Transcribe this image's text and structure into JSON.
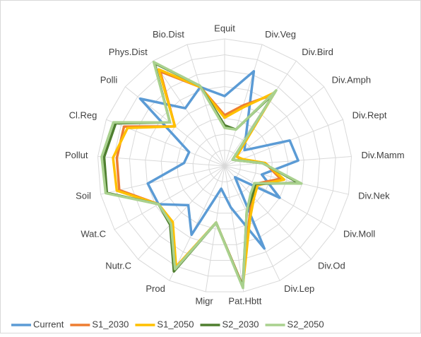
{
  "chart_data": {
    "type": "radar",
    "categories": [
      "Equit",
      "Div.Veg",
      "Div.Bird",
      "Div.Amph",
      "Div.Rept",
      "Div.Mamm",
      "Div.Nek",
      "Div.Moll",
      "Div.Od",
      "Div.Lep",
      "Pat.Hbtt",
      "Migr",
      "Prod",
      "Nutr.C",
      "Wat.C",
      "Soil",
      "Pollut",
      "Cl.Reg",
      "Polli",
      "Phys.Dist",
      "Bio.Dist"
    ],
    "series": [
      {
        "name": "Current",
        "color": "#5b9bd5",
        "values": [
          0.55,
          0.78,
          0.3,
          0.2,
          0.55,
          0.58,
          0.3,
          0.5,
          0.12,
          0.72,
          0.33,
          0.18,
          0.6,
          0.42,
          0.6,
          0.62,
          0.32,
          0.3,
          0.85,
          0.55,
          0.65
        ]
      },
      {
        "name": "S1_2030",
        "color": "#ed7d31",
        "values": [
          0.4,
          0.5,
          0.68,
          0.12,
          0.14,
          0.32,
          0.45,
          0.28,
          0.32,
          0.45,
          0.95,
          0.45,
          0.88,
          0.62,
          0.6,
          0.85,
          0.85,
          0.85,
          0.5,
          0.9,
          0.65
        ]
      },
      {
        "name": "S1_2050",
        "color": "#ffc000",
        "values": [
          0.38,
          0.48,
          0.7,
          0.12,
          0.15,
          0.32,
          0.48,
          0.3,
          0.34,
          0.46,
          0.96,
          0.45,
          0.88,
          0.6,
          0.6,
          0.87,
          0.88,
          0.82,
          0.5,
          0.92,
          0.65
        ]
      },
      {
        "name": "S2_2030",
        "color": "#4e7e2f",
        "values": [
          0.32,
          0.3,
          0.7,
          0.08,
          0.12,
          0.3,
          0.6,
          0.28,
          0.32,
          0.4,
          0.96,
          0.45,
          0.92,
          0.63,
          0.6,
          0.95,
          0.95,
          0.92,
          0.55,
          0.98,
          0.66
        ]
      },
      {
        "name": "S2_2050",
        "color": "#a9d18e",
        "values": [
          0.3,
          0.3,
          0.72,
          0.08,
          0.12,
          0.3,
          0.62,
          0.27,
          0.3,
          0.4,
          0.97,
          0.45,
          0.9,
          0.62,
          0.6,
          0.96,
          0.97,
          0.94,
          0.55,
          0.99,
          0.66
        ]
      }
    ],
    "ylim": [
      0,
      1
    ],
    "yticks": [
      0,
      0.125,
      0.25,
      0.375,
      0.5,
      0.625,
      0.75,
      0.875,
      1
    ],
    "grid": true,
    "legend": "bottom"
  }
}
